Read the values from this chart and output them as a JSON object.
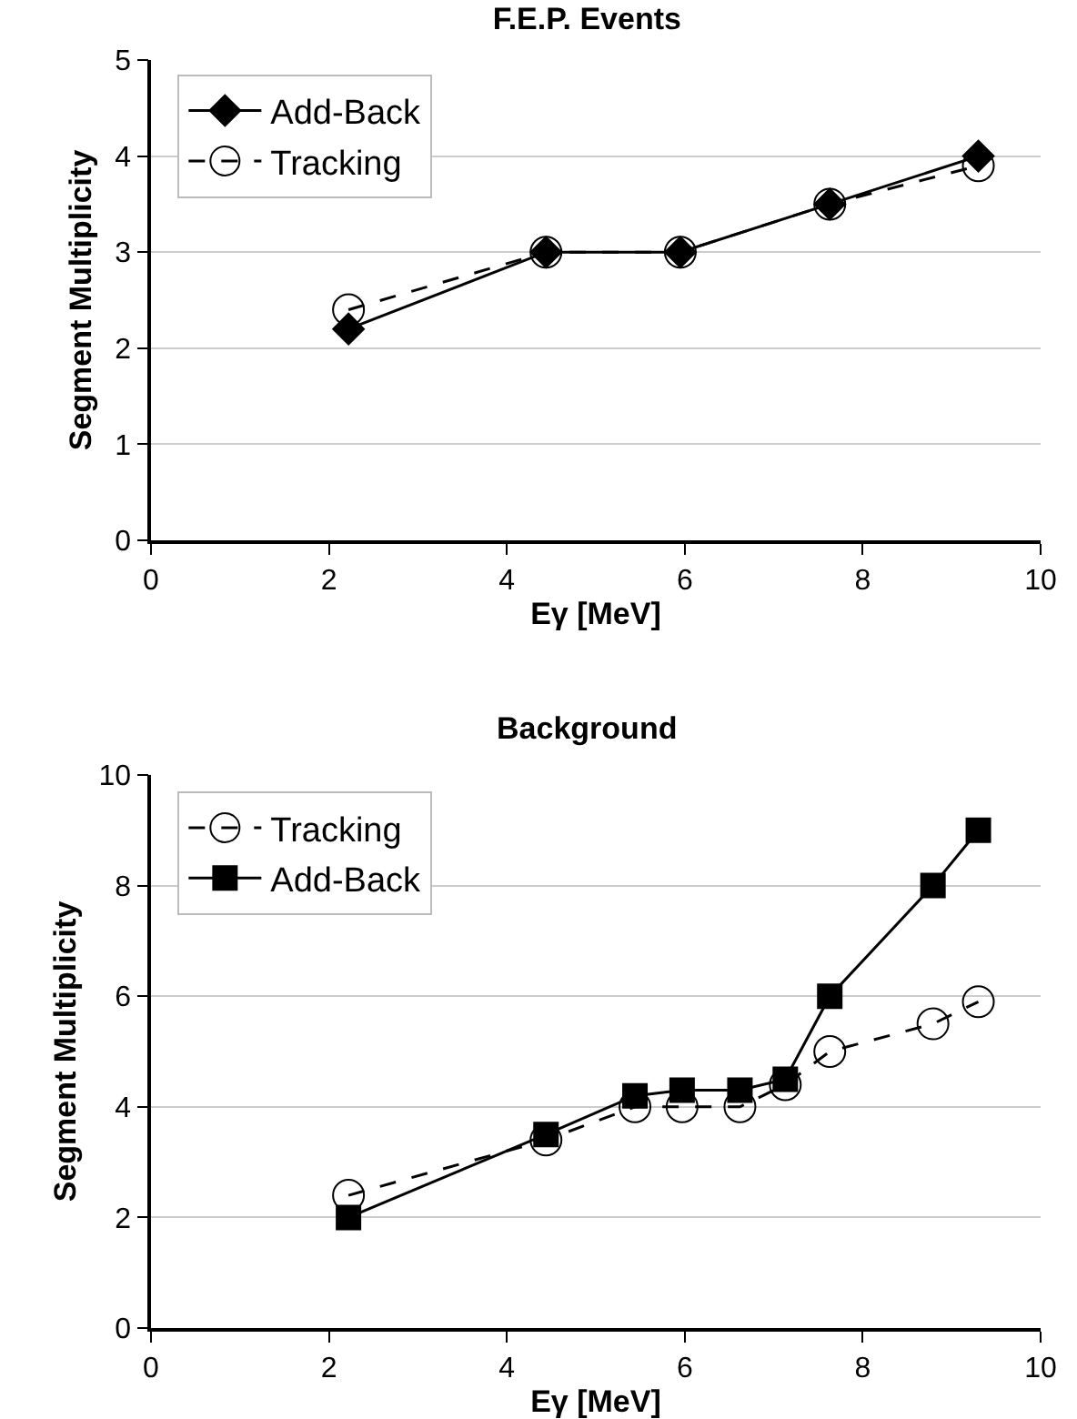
{
  "chart_data": [
    {
      "type": "line",
      "title": "F.E.P. Events",
      "xlabel": "Eγ [MeV]",
      "ylabel": "Segment Multiplicity",
      "xlim": [
        0,
        10
      ],
      "xticks": [
        0,
        2,
        4,
        6,
        8,
        10
      ],
      "ylim": [
        0,
        5
      ],
      "yticks": [
        0,
        1,
        2,
        3,
        4,
        5
      ],
      "grid": "y",
      "legend": "top left",
      "series": [
        {
          "name": "Add-Back",
          "color": "#000000",
          "marker": "diamond",
          "line_style": "solid",
          "x": [
            2.22,
            4.44,
            5.95,
            7.63,
            9.3
          ],
          "values": [
            2.2,
            3.0,
            3.0,
            3.5,
            4.0
          ]
        },
        {
          "name": "Tracking",
          "color": "#000000",
          "marker": "circle",
          "line_style": "dashed",
          "x": [
            2.22,
            4.44,
            5.95,
            7.63,
            9.3
          ],
          "values": [
            2.4,
            3.0,
            3.0,
            3.5,
            3.9
          ]
        }
      ]
    },
    {
      "type": "line",
      "title": "Background",
      "xlabel": "Eγ [MeV]",
      "ylabel": "Segment Multiplicity",
      "xlim": [
        0,
        10
      ],
      "xticks": [
        0,
        2,
        4,
        6,
        8,
        10
      ],
      "ylim": [
        0,
        10
      ],
      "yticks": [
        0,
        2,
        4,
        6,
        8,
        10
      ],
      "grid": "y",
      "legend": "top left",
      "series": [
        {
          "name": "Tracking",
          "color": "#000000",
          "marker": "circle",
          "line_style": "dashed",
          "x": [
            2.22,
            4.44,
            5.44,
            5.97,
            6.62,
            7.13,
            7.63,
            8.79,
            9.3
          ],
          "values": [
            2.4,
            3.4,
            4.0,
            4.0,
            4.0,
            4.4,
            5.0,
            5.5,
            5.9
          ]
        },
        {
          "name": "Add-Back",
          "color": "#000000",
          "marker": "square",
          "line_style": "solid",
          "x": [
            2.22,
            4.44,
            5.44,
            5.97,
            6.62,
            7.13,
            7.63,
            8.79,
            9.3
          ],
          "values": [
            2.0,
            3.5,
            4.2,
            4.3,
            4.3,
            4.5,
            6.0,
            8.0,
            9.0
          ]
        }
      ]
    }
  ]
}
